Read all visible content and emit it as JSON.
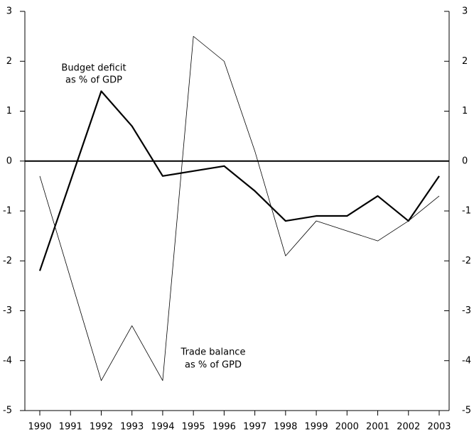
{
  "chart_data": {
    "type": "line",
    "categories": [
      "1990",
      "1991",
      "1992",
      "1993",
      "1994",
      "1995",
      "1996",
      "1997",
      "1998",
      "1999",
      "2000",
      "2001",
      "2002",
      "2003"
    ],
    "series": [
      {
        "name": "Budget deficit as % of GDP",
        "color": "#000000",
        "width": 2.2,
        "values": [
          -2.2,
          -0.4,
          1.4,
          0.7,
          -0.3,
          -0.2,
          -0.1,
          -0.6,
          -1.2,
          -1.1,
          -1.1,
          -0.7,
          -1.2,
          -0.3
        ]
      },
      {
        "name": "Trade balance as % of GPD",
        "color": "#000000",
        "width": 0.8,
        "values": [
          -0.3,
          -2.35,
          -4.4,
          -3.3,
          -4.4,
          2.5,
          2.0,
          0.2,
          -1.9,
          -1.2,
          -1.4,
          -1.6,
          -1.2,
          -0.7
        ]
      }
    ],
    "annotations": [
      {
        "lines": [
          "Budget deficit",
          "as % of GDP"
        ]
      },
      {
        "lines": [
          "Trade balance",
          "as % of GPD"
        ]
      }
    ],
    "ylim": [
      -5,
      3
    ],
    "yticks": [
      -5,
      -4,
      -3,
      -2,
      -1,
      0,
      1,
      2,
      3
    ],
    "y2lim": [
      -5,
      3
    ],
    "y2ticks": [
      -5,
      -4,
      -3,
      -2,
      -1,
      0,
      1,
      2,
      3
    ]
  }
}
